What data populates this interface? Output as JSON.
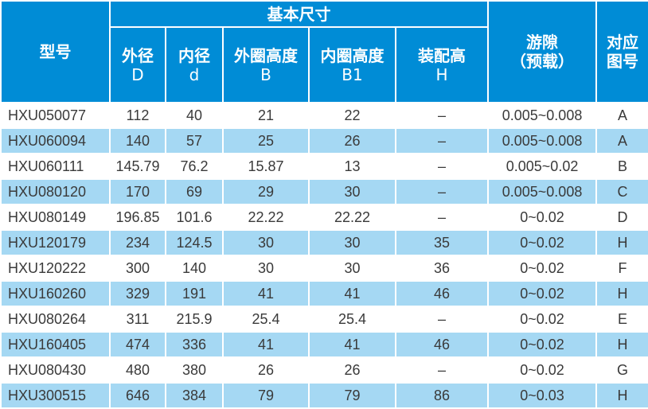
{
  "header": {
    "model": "型号",
    "basic_dims": "基本尺寸",
    "outer_dia": "外径",
    "outer_dia_sym": "D",
    "inner_dia": "内径",
    "inner_dia_sym": "d",
    "outer_ring_h": "外圈高度",
    "outer_ring_h_sym": "B",
    "inner_ring_h": "内圈高度",
    "inner_ring_h_sym": "B1",
    "assembly_h": "装配高",
    "assembly_h_sym": "H",
    "clearance": "游隙",
    "clearance_sub": "（预载）",
    "figure": "对应",
    "figure_sub": "图号"
  },
  "colors": {
    "header_bg": "#008cd6",
    "alt_row_bg": "#a5d8f3"
  },
  "rows": [
    [
      "HXU050077",
      "112",
      "40",
      "21",
      "22",
      "–",
      "0.005~0.008",
      "A"
    ],
    [
      "HXU060094",
      "140",
      "57",
      "25",
      "26",
      "–",
      "0.005~0.008",
      "A"
    ],
    [
      "HXU060111",
      "145.79",
      "76.2",
      "15.87",
      "13",
      "–",
      "0.005~0.02",
      "B"
    ],
    [
      "HXU080120",
      "170",
      "69",
      "29",
      "30",
      "–",
      "0.005~0.008",
      "C"
    ],
    [
      "HXU080149",
      "196.85",
      "101.6",
      "22.22",
      "22.22",
      "–",
      "0~0.02",
      "D"
    ],
    [
      "HXU120179",
      "234",
      "124.5",
      "30",
      "30",
      "35",
      "0~0.02",
      "H"
    ],
    [
      "HXU120222",
      "300",
      "140",
      "30",
      "30",
      "36",
      "0~0.02",
      "F"
    ],
    [
      "HXU160260",
      "329",
      "191",
      "41",
      "41",
      "46",
      "0~0.02",
      "H"
    ],
    [
      "HXU080264",
      "311",
      "215.9",
      "25.4",
      "25.4",
      "–",
      "0~0.02",
      "E"
    ],
    [
      "HXU160405",
      "474",
      "336",
      "41",
      "41",
      "46",
      "0~0.02",
      "H"
    ],
    [
      "HXU080430",
      "480",
      "380",
      "26",
      "26",
      "–",
      "0~0.02",
      "G"
    ],
    [
      "HXU300515",
      "646",
      "384",
      "79",
      "79",
      "86",
      "0~0.03",
      "H"
    ]
  ]
}
